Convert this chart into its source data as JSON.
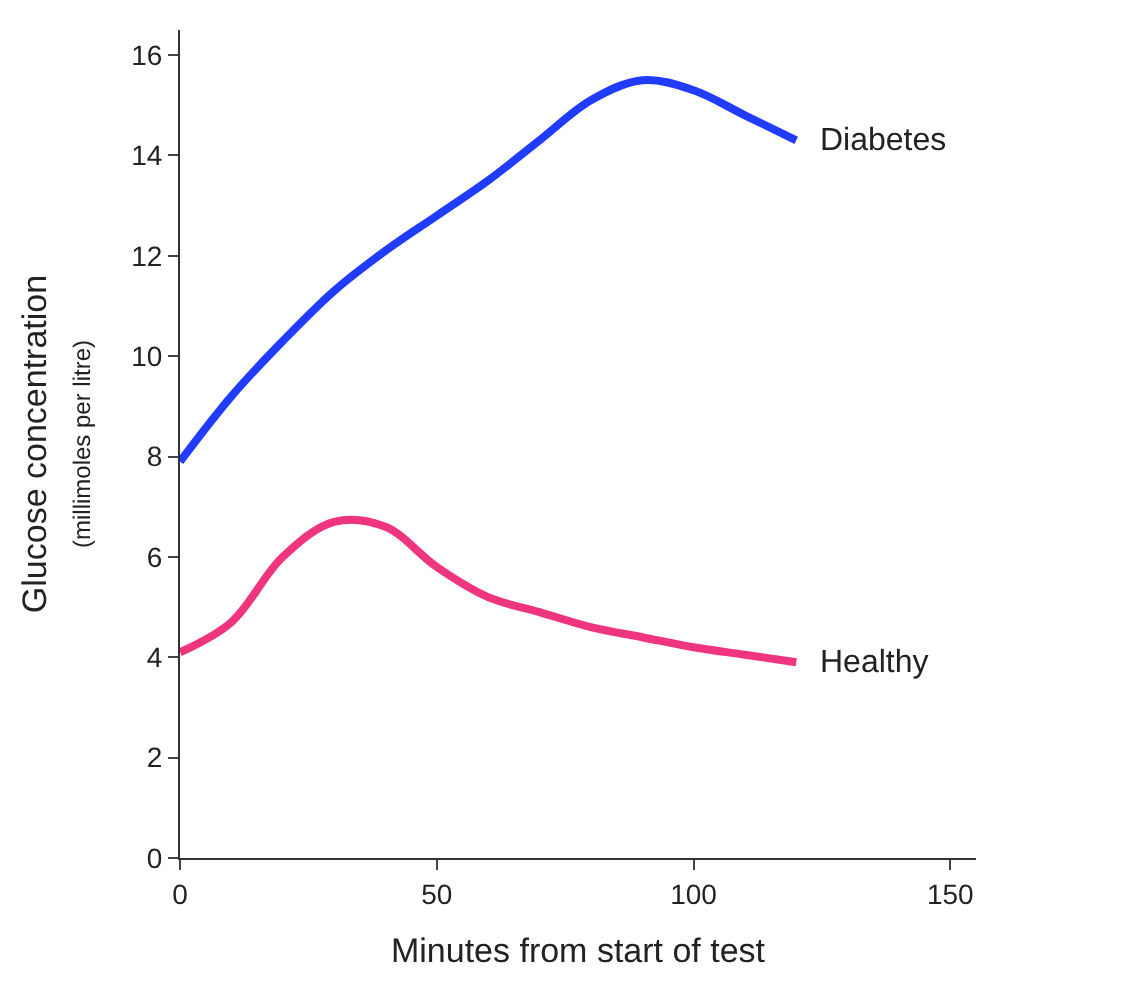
{
  "chart_data": {
    "type": "line",
    "xlabel": "Minutes from start of test",
    "ylabel": "Glucose concentration\n(millimoles per litre)",
    "xlim": [
      0,
      155
    ],
    "xticks": [
      0,
      50,
      100,
      150
    ],
    "ylim": [
      0,
      16.5
    ],
    "yticks": [
      0,
      2,
      4,
      6,
      8,
      10,
      12,
      14,
      16
    ],
    "legend": false,
    "marker": "none",
    "line_style": "solid",
    "x": [
      0,
      10,
      20,
      30,
      40,
      50,
      60,
      70,
      80,
      90,
      100,
      110,
      120
    ],
    "series": [
      {
        "name": "Diabetes",
        "color": "#1f3cff",
        "values": [
          7.9,
          9.2,
          10.3,
          11.3,
          12.1,
          12.8,
          13.5,
          14.3,
          15.1,
          15.5,
          15.3,
          14.8,
          14.3
        ]
      },
      {
        "name": "Healthy",
        "color": "#f0357f",
        "values": [
          4.1,
          4.7,
          6.0,
          6.7,
          6.6,
          5.8,
          5.2,
          4.9,
          4.6,
          4.4,
          4.2,
          4.05,
          3.9
        ]
      }
    ]
  }
}
